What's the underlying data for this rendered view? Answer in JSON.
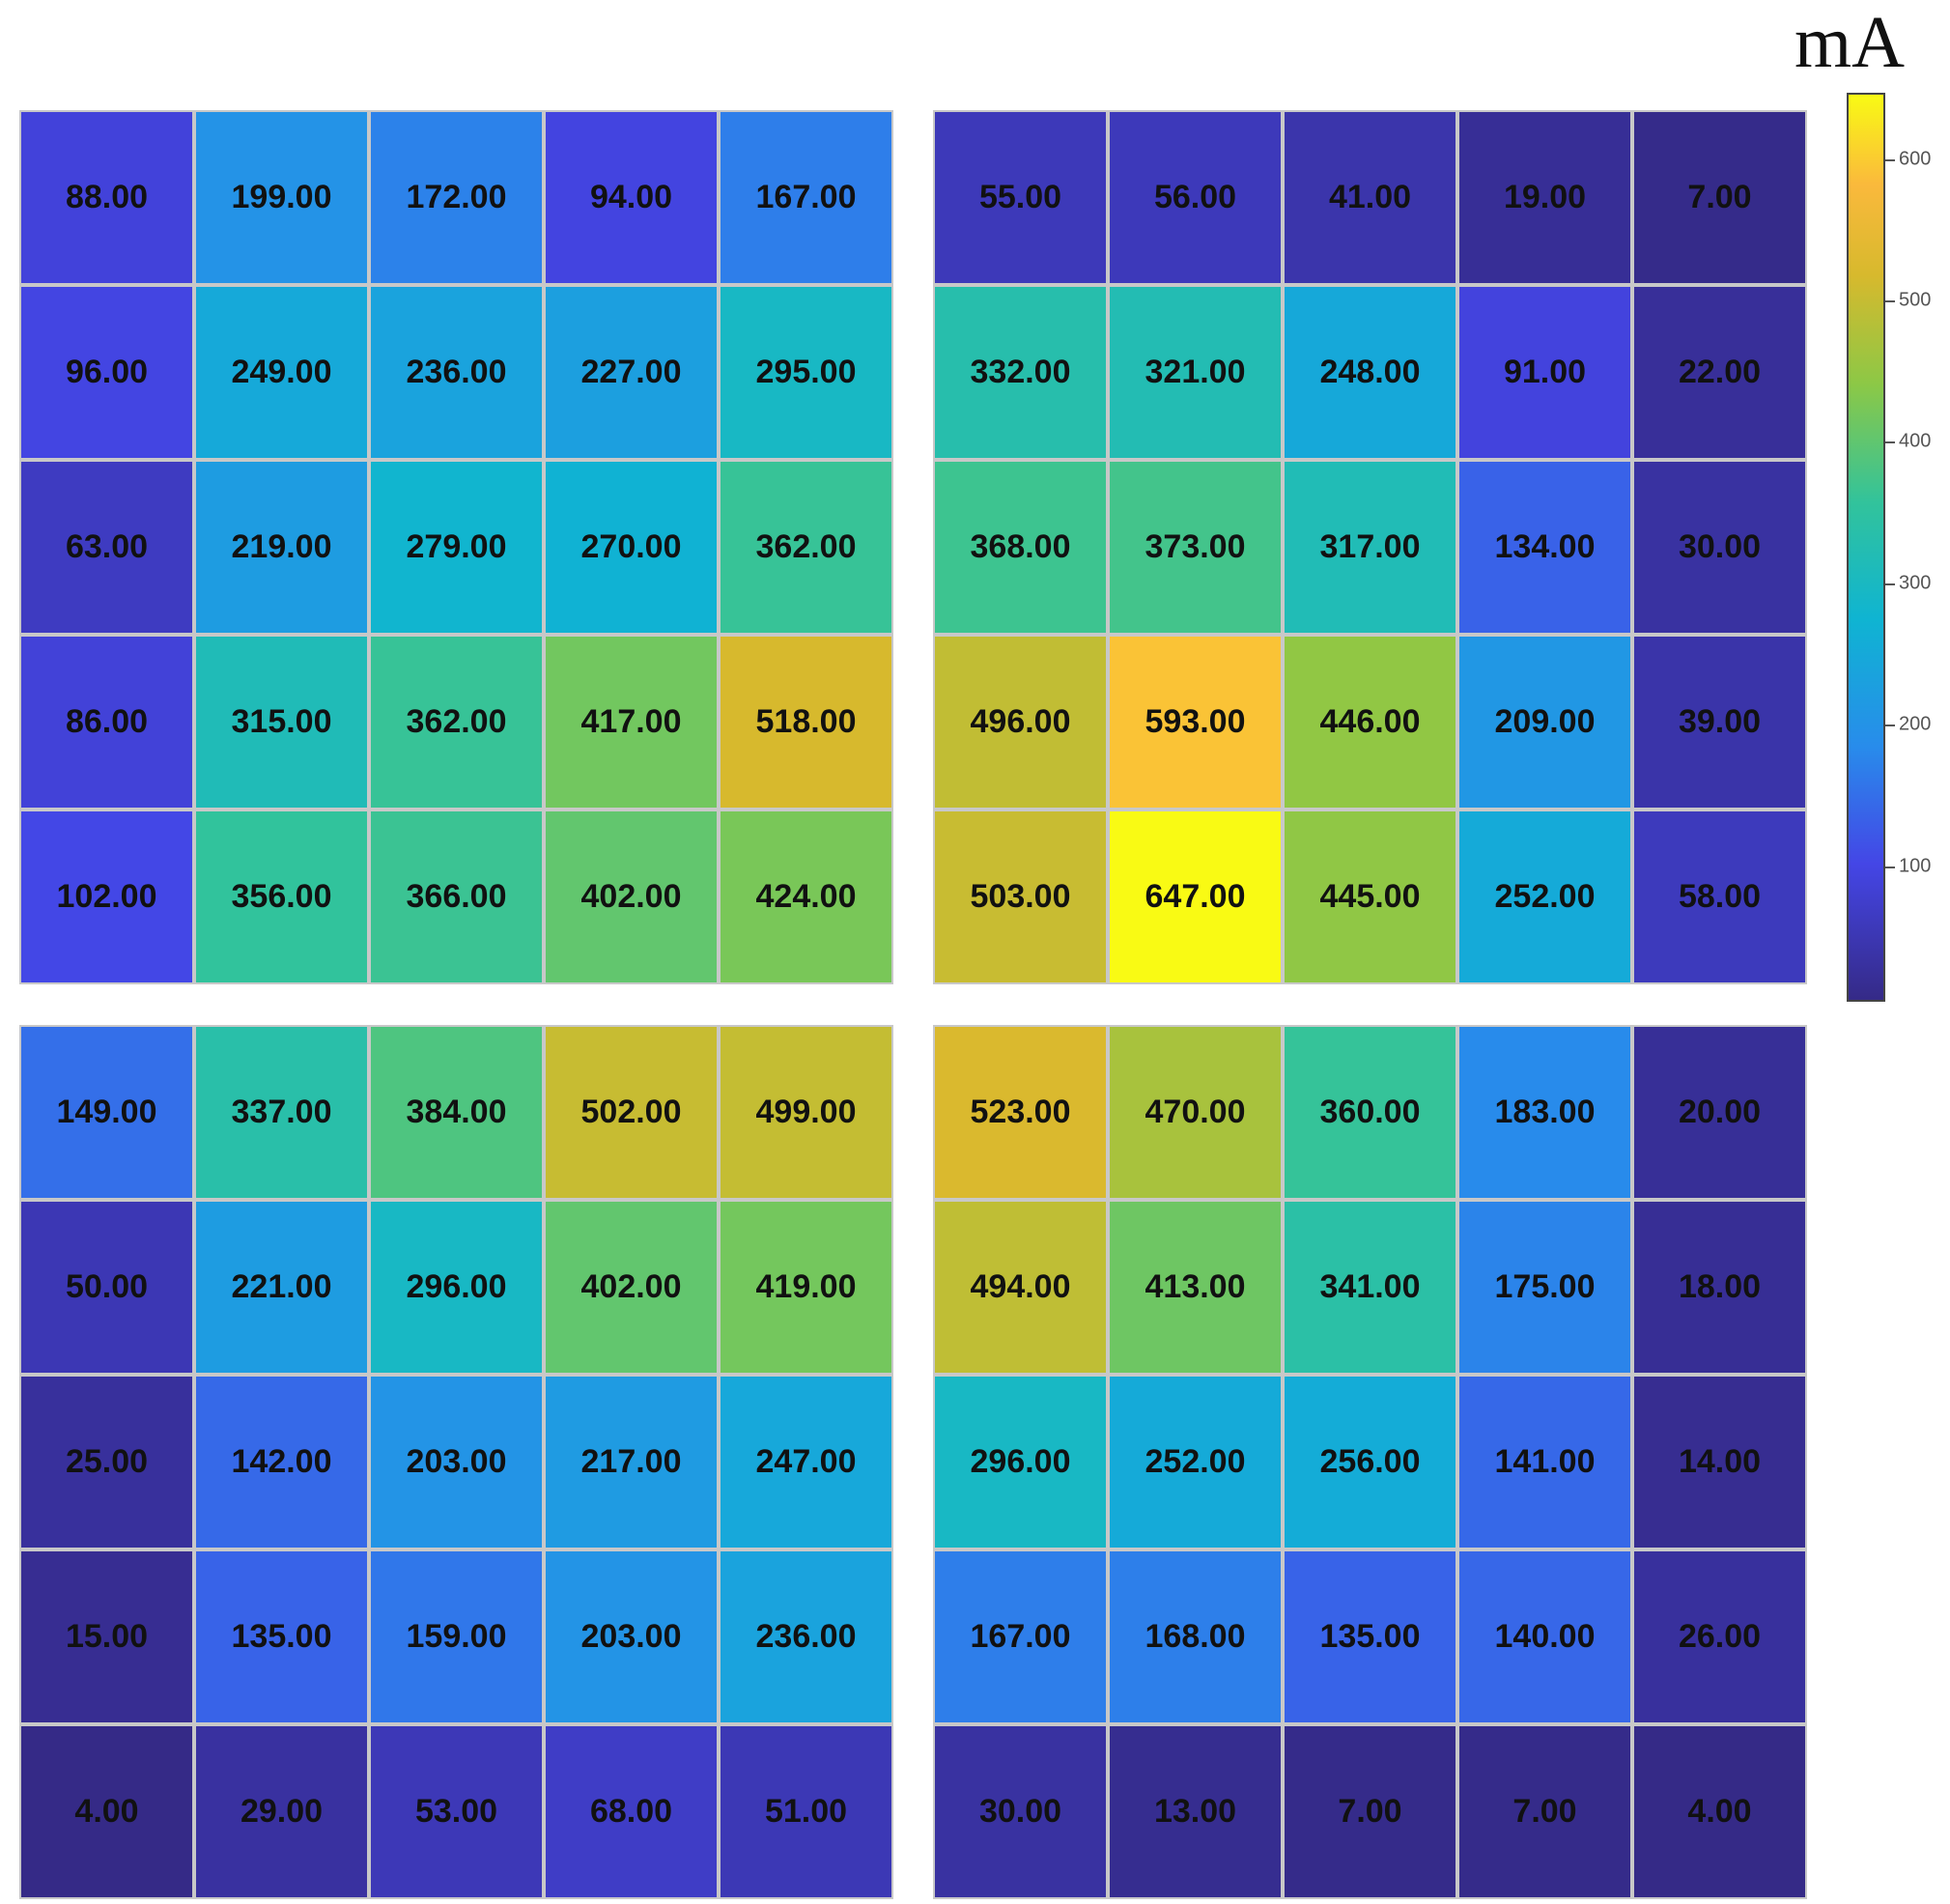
{
  "chart_data": {
    "type": "heatmap",
    "unit": "mA",
    "colorbar": {
      "ticks": [
        100,
        200,
        300,
        400,
        500,
        600
      ],
      "range": [
        4,
        647
      ],
      "colormap": "parula"
    },
    "panels": [
      {
        "position": "top-left",
        "values": [
          [
            88.0,
            199.0,
            172.0,
            94.0,
            167.0
          ],
          [
            96.0,
            249.0,
            236.0,
            227.0,
            295.0
          ],
          [
            63.0,
            219.0,
            279.0,
            270.0,
            362.0
          ],
          [
            86.0,
            315.0,
            362.0,
            417.0,
            518.0
          ],
          [
            102.0,
            356.0,
            366.0,
            402.0,
            424.0
          ]
        ]
      },
      {
        "position": "top-right",
        "values": [
          [
            55.0,
            56.0,
            41.0,
            19.0,
            7.0
          ],
          [
            332.0,
            321.0,
            248.0,
            91.0,
            22.0
          ],
          [
            368.0,
            373.0,
            317.0,
            134.0,
            30.0
          ],
          [
            496.0,
            593.0,
            446.0,
            209.0,
            39.0
          ],
          [
            503.0,
            647.0,
            445.0,
            252.0,
            58.0
          ]
        ]
      },
      {
        "position": "bottom-left",
        "values": [
          [
            149.0,
            337.0,
            384.0,
            502.0,
            499.0
          ],
          [
            50.0,
            221.0,
            296.0,
            402.0,
            419.0
          ],
          [
            25.0,
            142.0,
            203.0,
            217.0,
            247.0
          ],
          [
            15.0,
            135.0,
            159.0,
            203.0,
            236.0
          ],
          [
            4.0,
            29.0,
            53.0,
            68.0,
            51.0
          ]
        ]
      },
      {
        "position": "bottom-right",
        "values": [
          [
            523.0,
            470.0,
            360.0,
            183.0,
            20.0
          ],
          [
            494.0,
            413.0,
            341.0,
            175.0,
            18.0
          ],
          [
            296.0,
            252.0,
            256.0,
            141.0,
            14.0
          ],
          [
            167.0,
            168.0,
            135.0,
            140.0,
            26.0
          ],
          [
            30.0,
            13.0,
            7.0,
            7.0,
            4.0
          ]
        ]
      }
    ]
  }
}
